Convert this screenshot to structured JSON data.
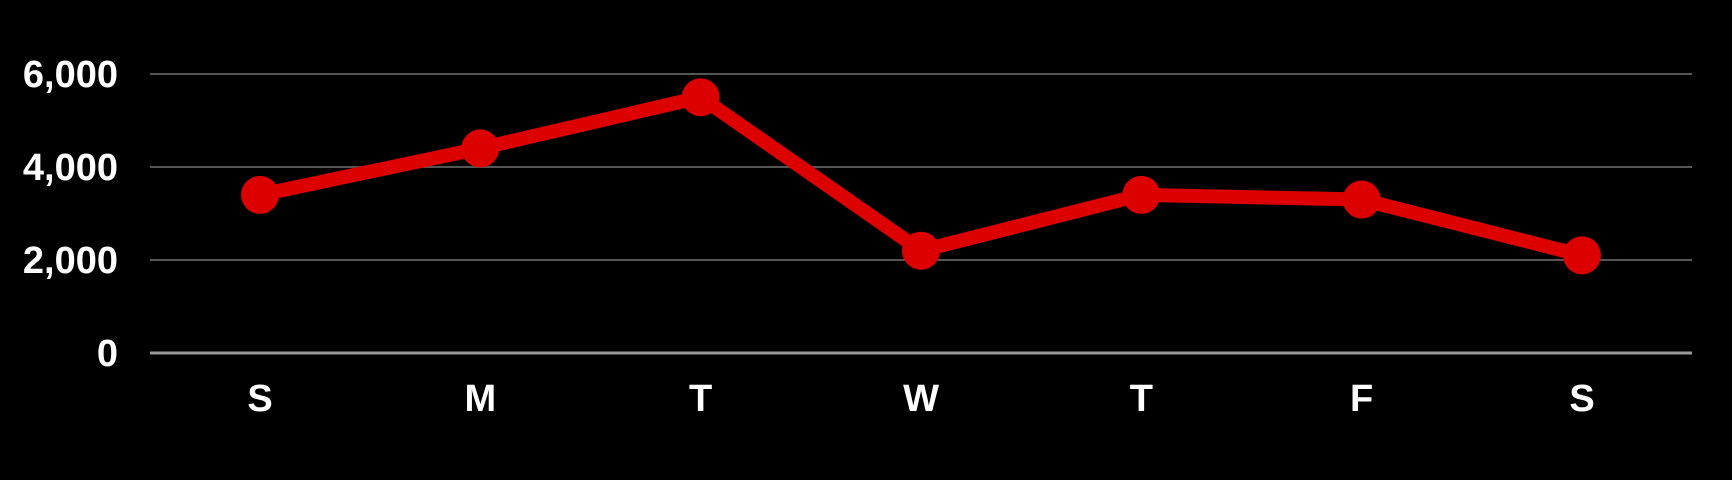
{
  "chart_data": {
    "type": "line",
    "categories": [
      "S",
      "M",
      "T",
      "W",
      "T",
      "F",
      "S"
    ],
    "series": [
      {
        "values": [
          3400,
          4400,
          5500,
          2200,
          3400,
          3300,
          2100
        ]
      }
    ],
    "yticks": [
      "0",
      "2,000",
      "4,000",
      "6,000"
    ],
    "ytick_values": [
      0,
      2000,
      4000,
      6000
    ],
    "ylim": [
      0,
      6000
    ],
    "grid": true,
    "legend": "none",
    "colors": {
      "line": "#dd0000",
      "background": "#000000",
      "grid": "#555555",
      "axis": "#999999",
      "text": "#ffffff"
    }
  }
}
